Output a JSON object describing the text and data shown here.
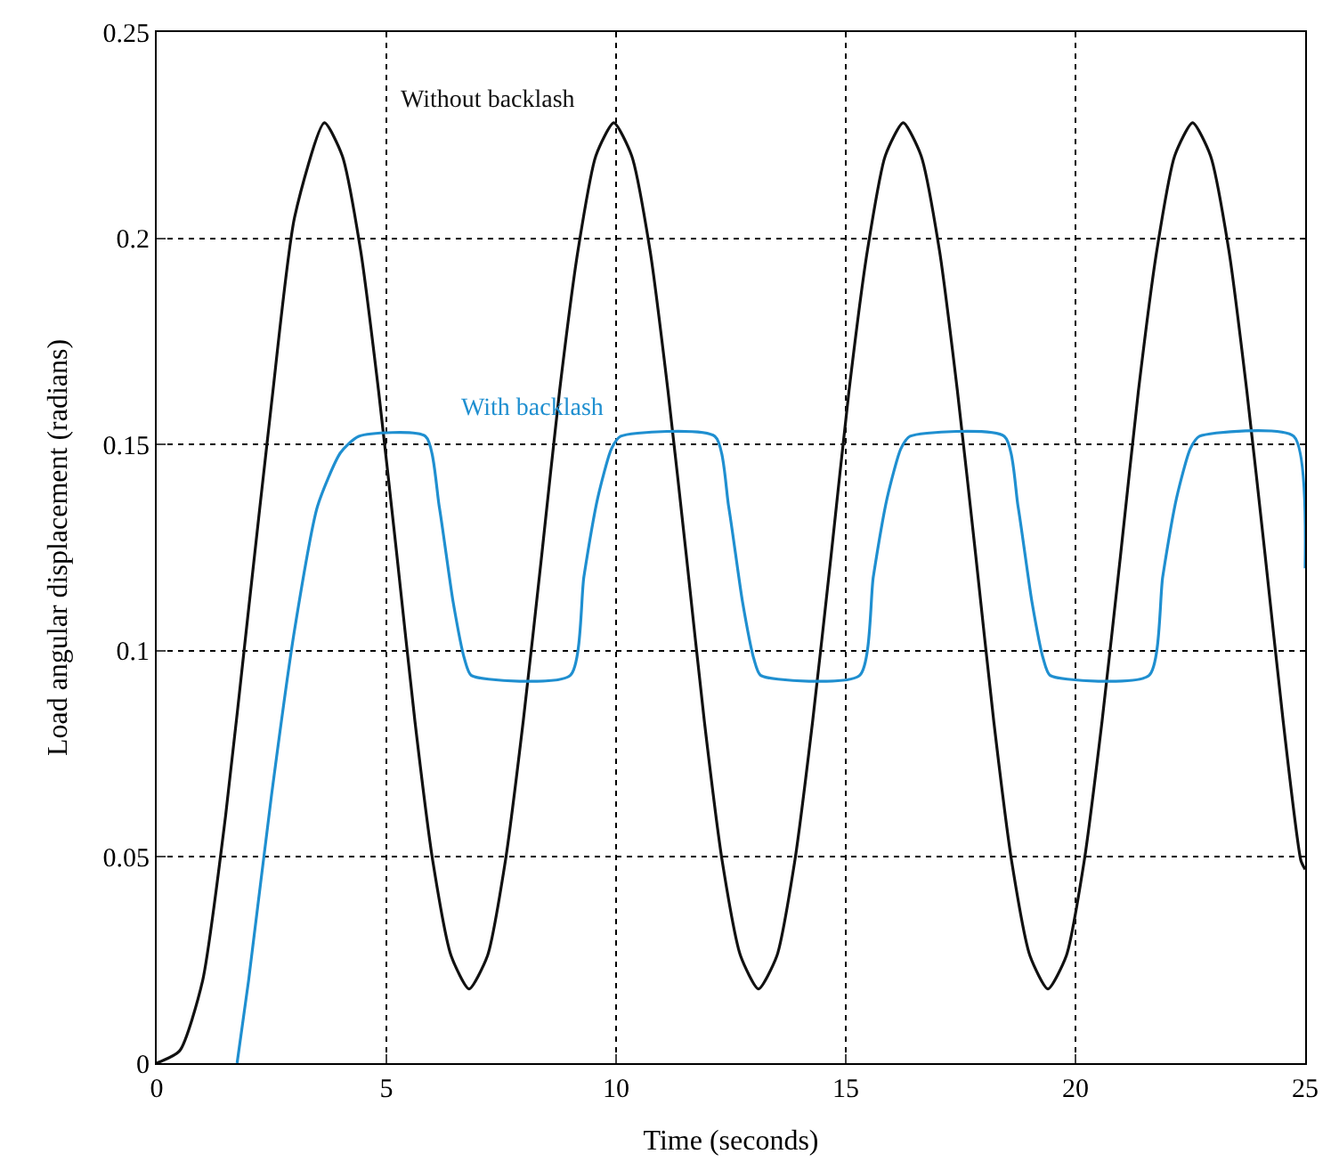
{
  "chart_data": {
    "type": "line",
    "xlabel": "Time (seconds)",
    "ylabel": "Load angular displacement (radians)",
    "xlim": [
      0,
      25
    ],
    "xticks": [
      0,
      5,
      10,
      15,
      20,
      25
    ],
    "ylim": [
      0,
      0.25
    ],
    "yticks": [
      0,
      0.05,
      {
        "value": 0.1,
        "label": "0.1"
      },
      0.15,
      {
        "value": 0.2,
        "label": "0.2"
      },
      0.25
    ],
    "grid": true,
    "legend": false,
    "line_style": "solid",
    "marker": "none",
    "series": [
      {
        "name": "Without backlash",
        "color": "#111111",
        "x": [
          0,
          0.5,
          1,
          1.5,
          2,
          2.5,
          3,
          3.65,
          4.04,
          4.44,
          4.83,
          5.23,
          5.62,
          6.01,
          6.41,
          6.8,
          7.2,
          7.59,
          7.98,
          8.38,
          8.77,
          9.17,
          9.56,
          9.95,
          10.34,
          10.74,
          11.13,
          11.53,
          11.92,
          12.31,
          12.71,
          13.1,
          13.5,
          13.89,
          14.28,
          14.68,
          15.07,
          15.47,
          15.86,
          16.25,
          16.64,
          17.04,
          17.43,
          17.83,
          18.22,
          18.61,
          19.01,
          19.4,
          19.8,
          20.19,
          20.58,
          20.98,
          21.37,
          21.77,
          22.16,
          22.55,
          22.94,
          23.34,
          23.73,
          24.13,
          24.52,
          24.91,
          25
        ],
        "values": [
          0,
          0.003,
          0.02,
          0.06,
          0.11,
          0.16,
          0.205,
          0.228,
          0.22,
          0.197,
          0.163,
          0.123,
          0.083,
          0.049,
          0.026,
          0.018,
          0.026,
          0.049,
          0.083,
          0.123,
          0.163,
          0.197,
          0.22,
          0.228,
          0.22,
          0.197,
          0.163,
          0.123,
          0.083,
          0.049,
          0.026,
          0.018,
          0.026,
          0.049,
          0.083,
          0.123,
          0.163,
          0.197,
          0.22,
          0.228,
          0.22,
          0.197,
          0.163,
          0.123,
          0.083,
          0.049,
          0.026,
          0.018,
          0.026,
          0.049,
          0.083,
          0.123,
          0.163,
          0.197,
          0.22,
          0.228,
          0.22,
          0.197,
          0.163,
          0.123,
          0.083,
          0.049,
          0.047
        ]
      },
      {
        "name": "With backlash",
        "color": "#1f8fd0",
        "x": [
          1.75,
          2.0,
          2.5,
          3.0,
          3.5,
          4.0,
          4.4,
          5.85,
          6.15,
          6.45,
          6.7,
          6.85,
          9.0,
          9.3,
          9.6,
          9.9,
          10.1,
          12.15,
          12.45,
          12.75,
          13.0,
          13.15,
          15.3,
          15.6,
          15.9,
          16.2,
          16.4,
          18.45,
          18.75,
          19.05,
          19.3,
          19.45,
          21.6,
          21.9,
          22.2,
          22.5,
          22.7,
          24.75,
          25
        ],
        "values": [
          0,
          0.02,
          0.065,
          0.105,
          0.135,
          0.148,
          0.152,
          0.152,
          0.135,
          0.112,
          0.098,
          0.094,
          0.094,
          0.118,
          0.137,
          0.149,
          0.152,
          0.152,
          0.135,
          0.112,
          0.098,
          0.094,
          0.094,
          0.118,
          0.137,
          0.149,
          0.152,
          0.152,
          0.135,
          0.112,
          0.098,
          0.094,
          0.094,
          0.118,
          0.137,
          0.149,
          0.152,
          0.152,
          0.12
        ]
      }
    ]
  }
}
